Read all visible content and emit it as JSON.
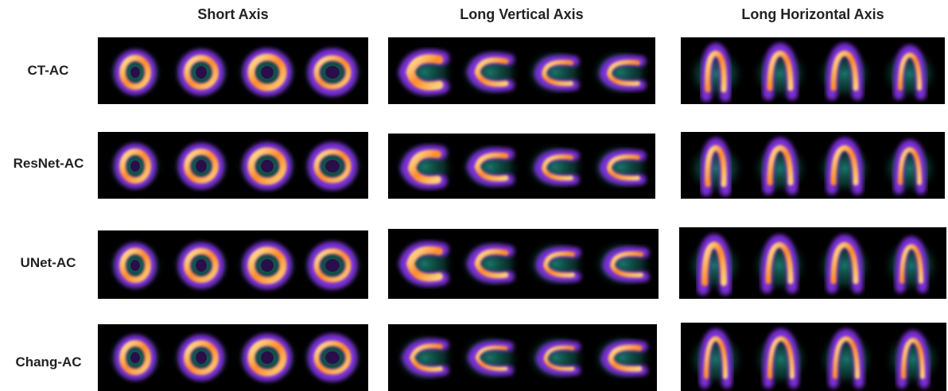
{
  "columns": {
    "short_axis": "Short Axis",
    "long_vertical_axis": "Long Vertical Axis",
    "long_horizontal_axis": "Long Horizontal Axis"
  },
  "rows": {
    "ct_ac": "CT-AC",
    "resnet_ac": "ResNet-AC",
    "unet_ac": "UNet-AC",
    "chang_ac": "Chang-AC"
  },
  "colormap": {
    "background": "#000000",
    "low": "#1c8a7a",
    "mid": "#7b2fd9",
    "high": "#ff7a2a",
    "peak": "#fff3a8"
  }
}
